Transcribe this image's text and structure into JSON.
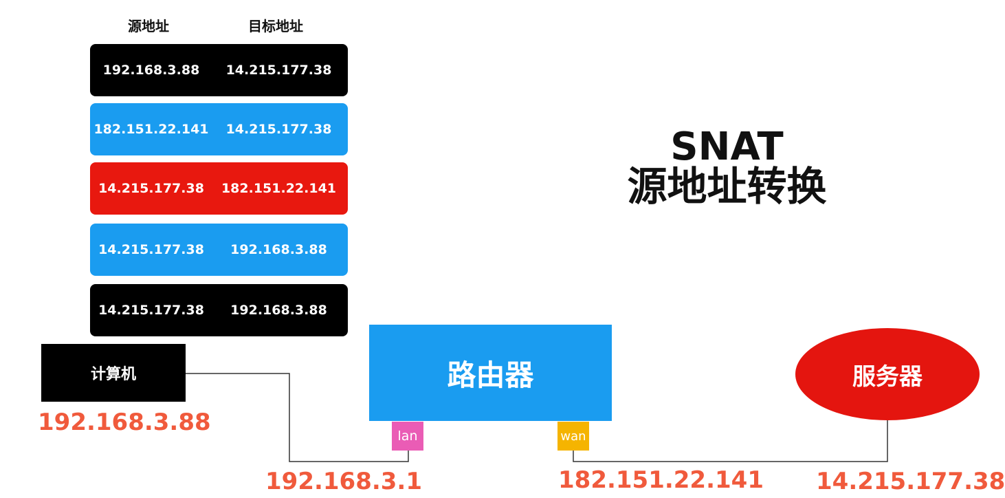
{
  "headers": {
    "source": "源地址",
    "destination": "目标地址"
  },
  "packets": [
    {
      "source": "192.168.3.88",
      "destination": "14.215.177.38",
      "color": "#000000"
    },
    {
      "source": "182.151.22.141",
      "destination": "14.215.177.38",
      "color": "#1a9cf0"
    },
    {
      "source": "14.215.177.38",
      "destination": "182.151.22.141",
      "color": "#e8180f"
    },
    {
      "source": "14.215.177.38",
      "destination": "192.168.3.88",
      "color": "#1a9cf0"
    },
    {
      "source": "14.215.177.38",
      "destination": "192.168.3.88",
      "color": "#000000"
    }
  ],
  "title": {
    "line1": "SNAT",
    "line2": "源地址转换"
  },
  "nodes": {
    "computer": {
      "label": "计算机",
      "ip": "192.168.3.88",
      "color": "#000000"
    },
    "router": {
      "label": "路由器",
      "color": "#1a9cf0"
    },
    "server": {
      "label": "服务器",
      "ip": "14.215.177.38",
      "color": "#e4150f"
    }
  },
  "ports": {
    "lan": {
      "label": "lan",
      "ip": "192.168.3.1",
      "color": "#ea5cb5"
    },
    "wan": {
      "label": "wan",
      "ip": "182.151.22.141",
      "color": "#f5b400"
    }
  },
  "colors": {
    "ip_text": "#f05a3c",
    "wire": "#333333"
  }
}
